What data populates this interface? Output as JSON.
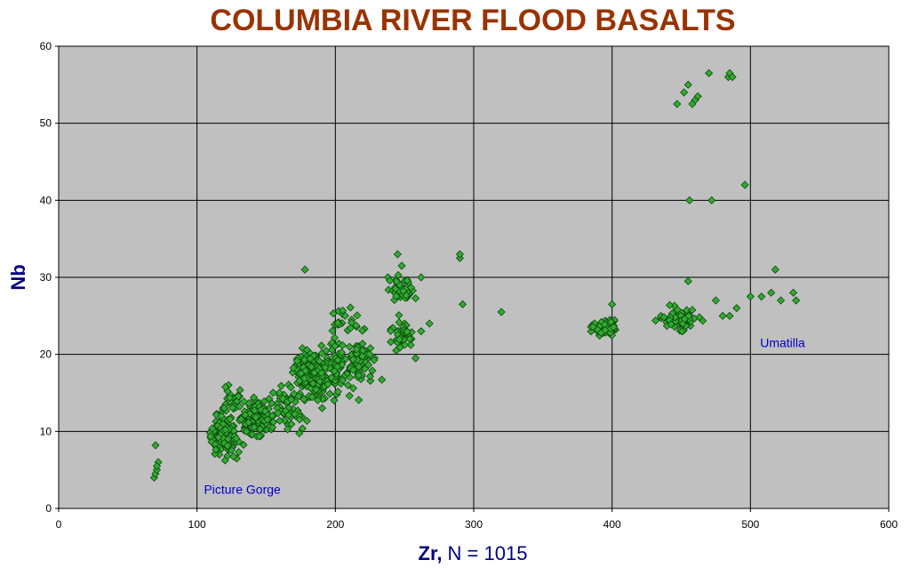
{
  "chart_data": {
    "type": "scatter",
    "title": "COLUMBIA RIVER FLOOD BASALTS",
    "xlabel_bold": "Zr,",
    "xlabel_rest": " N = 1015",
    "ylabel": "Nb",
    "xlim": [
      0,
      600
    ],
    "ylim": [
      0,
      60
    ],
    "xticks": [
      0,
      100,
      200,
      300,
      400,
      500,
      600
    ],
    "yticks": [
      0,
      10,
      20,
      30,
      40,
      50,
      60
    ],
    "grid": true,
    "plot_background": "#c0c0c0",
    "marker_color": "#33aa33",
    "annotations": [
      {
        "text": "Picture Gorge",
        "x": 105,
        "y": 2.5
      },
      {
        "text": "Umatilla",
        "x": 507,
        "y": 21.5
      }
    ],
    "points_sample": [
      [
        69,
        4
      ],
      [
        70,
        4.5
      ],
      [
        71,
        5
      ],
      [
        72,
        6
      ],
      [
        70,
        8.2
      ],
      [
        71,
        5.5
      ],
      [
        178,
        31
      ],
      [
        238,
        30
      ],
      [
        245,
        33
      ],
      [
        248,
        31.5
      ],
      [
        262,
        30
      ],
      [
        290,
        32.5
      ],
      [
        290,
        33
      ],
      [
        292,
        26.5
      ],
      [
        320,
        25.5
      ],
      [
        250,
        24
      ],
      [
        262,
        23
      ],
      [
        268,
        24
      ],
      [
        255,
        22
      ],
      [
        244,
        20.5
      ],
      [
        258,
        19.5
      ],
      [
        447,
        52.5
      ],
      [
        452,
        54
      ],
      [
        455,
        55
      ],
      [
        460,
        53
      ],
      [
        462,
        53.5
      ],
      [
        458,
        52.5
      ],
      [
        470,
        56.5
      ],
      [
        484,
        56
      ],
      [
        485,
        56.5
      ],
      [
        487,
        56
      ],
      [
        456,
        40
      ],
      [
        472,
        40
      ],
      [
        496,
        42
      ],
      [
        400,
        26.5
      ],
      [
        455,
        29.5
      ],
      [
        500,
        27.5
      ],
      [
        508,
        27.5
      ],
      [
        515,
        28
      ],
      [
        518,
        31
      ],
      [
        522,
        27
      ],
      [
        531,
        28
      ],
      [
        533,
        27
      ],
      [
        485,
        25
      ],
      [
        490,
        26
      ],
      [
        475,
        27
      ],
      [
        480,
        25
      ]
    ],
    "clusters": [
      {
        "cx": 120,
        "cy": 9.5,
        "sx": 7,
        "sy": 1.8,
        "n": 130
      },
      {
        "cx": 142,
        "cy": 11.5,
        "sx": 9,
        "sy": 1.6,
        "n": 120
      },
      {
        "cx": 125,
        "cy": 14.5,
        "sx": 6,
        "sy": 1.2,
        "n": 25
      },
      {
        "cx": 165,
        "cy": 13,
        "sx": 8,
        "sy": 1.8,
        "n": 60
      },
      {
        "cx": 182,
        "cy": 17.5,
        "sx": 8,
        "sy": 2.0,
        "n": 200
      },
      {
        "cx": 200,
        "cy": 18,
        "sx": 8,
        "sy": 2.5,
        "n": 90
      },
      {
        "cx": 218,
        "cy": 19,
        "sx": 7,
        "sy": 2.3,
        "n": 70
      },
      {
        "cx": 208,
        "cy": 24.5,
        "sx": 6,
        "sy": 1.5,
        "n": 20
      },
      {
        "cx": 248,
        "cy": 28.5,
        "sx": 6,
        "sy": 1.2,
        "n": 50
      },
      {
        "cx": 248,
        "cy": 22.5,
        "sx": 5,
        "sy": 1.2,
        "n": 40
      },
      {
        "cx": 395,
        "cy": 23.5,
        "sx": 7,
        "sy": 0.8,
        "n": 60
      },
      {
        "cx": 450,
        "cy": 24.5,
        "sx": 10,
        "sy": 1.0,
        "n": 70
      }
    ]
  }
}
